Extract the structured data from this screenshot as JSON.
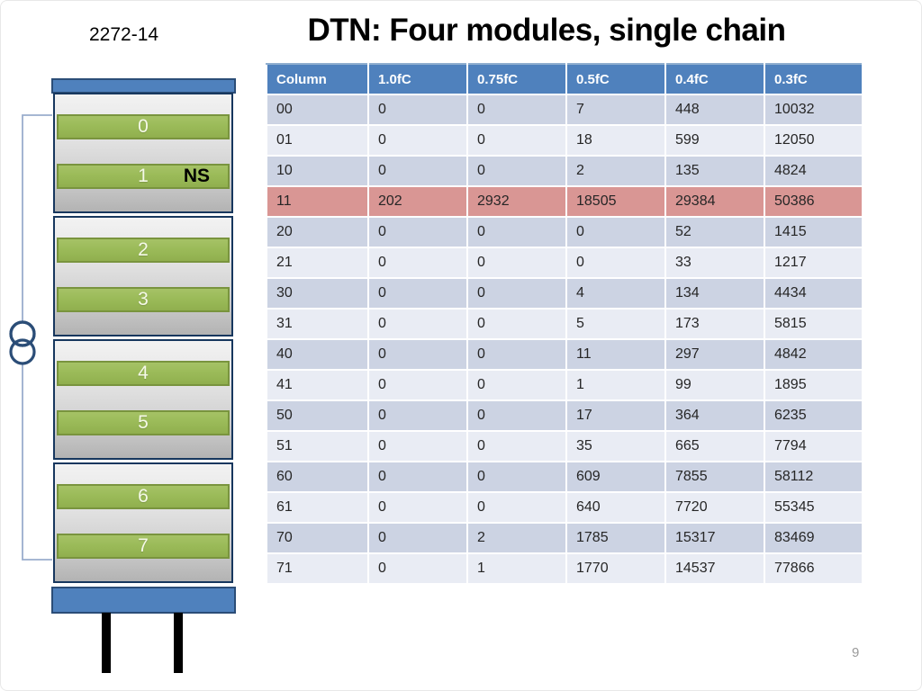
{
  "slide": {
    "id_label": "2272-14",
    "title": "DTN: Four modules, single chain",
    "page_number": "9"
  },
  "diagram": {
    "description": "stack of four detector modules in a single chain",
    "icons": {
      "transformer": "two-overlapping-circles"
    },
    "modules": [
      {
        "bars": [
          {
            "label": "0"
          },
          {
            "label": "1",
            "tag": "NS"
          }
        ]
      },
      {
        "bars": [
          {
            "label": "2"
          },
          {
            "label": "3"
          }
        ]
      },
      {
        "bars": [
          {
            "label": "4"
          },
          {
            "label": "5"
          }
        ]
      },
      {
        "bars": [
          {
            "label": "6"
          },
          {
            "label": "7"
          }
        ]
      }
    ]
  },
  "table": {
    "columns": [
      "Column",
      "1.0fC",
      "0.75fC",
      "0.5fC",
      "0.4fC",
      "0.3fC"
    ],
    "rows": [
      {
        "cells": [
          "00",
          "0",
          "0",
          "7",
          "448",
          "10032"
        ],
        "highlight": false
      },
      {
        "cells": [
          "01",
          "0",
          "0",
          "18",
          "599",
          "12050"
        ],
        "highlight": false
      },
      {
        "cells": [
          "10",
          "0",
          "0",
          "2",
          "135",
          "4824"
        ],
        "highlight": false
      },
      {
        "cells": [
          "11",
          "202",
          "2932",
          "18505",
          "29384",
          "50386"
        ],
        "highlight": true
      },
      {
        "cells": [
          "20",
          "0",
          "0",
          "0",
          "52",
          "1415"
        ],
        "highlight": false
      },
      {
        "cells": [
          "21",
          "0",
          "0",
          "0",
          "33",
          "1217"
        ],
        "highlight": false
      },
      {
        "cells": [
          "30",
          "0",
          "0",
          "4",
          "134",
          "4434"
        ],
        "highlight": false
      },
      {
        "cells": [
          "31",
          "0",
          "0",
          "5",
          "173",
          "5815"
        ],
        "highlight": false
      },
      {
        "cells": [
          "40",
          "0",
          "0",
          "11",
          "297",
          "4842"
        ],
        "highlight": false
      },
      {
        "cells": [
          "41",
          "0",
          "0",
          "1",
          "99",
          "1895"
        ],
        "highlight": false
      },
      {
        "cells": [
          "50",
          "0",
          "0",
          "17",
          "364",
          "6235"
        ],
        "highlight": false
      },
      {
        "cells": [
          "51",
          "0",
          "0",
          "35",
          "665",
          "7794"
        ],
        "highlight": false
      },
      {
        "cells": [
          "60",
          "0",
          "0",
          "609",
          "7855",
          "58112"
        ],
        "highlight": false
      },
      {
        "cells": [
          "61",
          "0",
          "0",
          "640",
          "7720",
          "55345"
        ],
        "highlight": false
      },
      {
        "cells": [
          "70",
          "0",
          "2",
          "1785",
          "15317",
          "83469"
        ],
        "highlight": false
      },
      {
        "cells": [
          "71",
          "0",
          "1",
          "1770",
          "14537",
          "77866"
        ],
        "highlight": false
      }
    ]
  },
  "colors": {
    "header_bg": "#4f81bd",
    "row_dark": "#ccd3e3",
    "row_light": "#e9ecf4",
    "highlight_row": "#d99694",
    "bar_green": "#9bbb59",
    "bar_green_border": "#79943e",
    "cap_blue": "#4f81bd",
    "frame_navy": "#17375e",
    "wire_blue": "#9aadcd",
    "circle_stroke": "#2b4d77"
  }
}
